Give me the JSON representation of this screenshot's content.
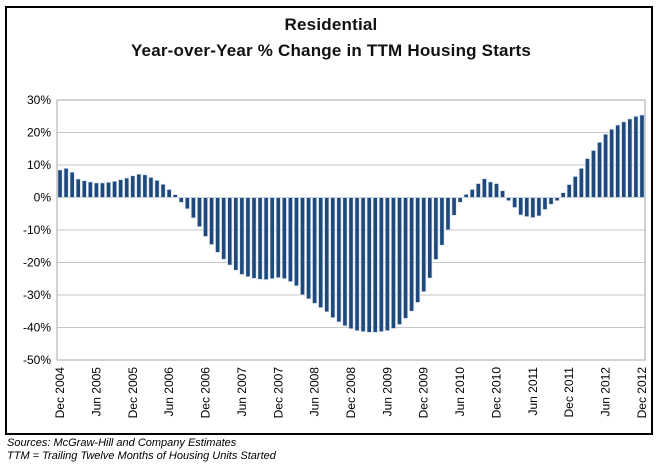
{
  "title": {
    "line1": "Residential",
    "line2": "Year-over-Year % Change in TTM Housing Starts"
  },
  "footer": {
    "line1": "Sources: McGraw-Hill and Company Estimates",
    "line2": "TTM = Trailing Twelve Months of Housing Units Started"
  },
  "chart_data": {
    "type": "bar",
    "title": "Residential Year-over-Year % Change in TTM Housing Starts",
    "xlabel": "",
    "ylabel": "",
    "x_interval": "monthly",
    "x_start": "Dec 2004",
    "x_end": "Dec 2012",
    "tick_every": 6,
    "tick_labels": [
      "Dec 2004",
      "Jun 2005",
      "Dec 2005",
      "Jun 2006",
      "Dec 2006",
      "Jun 2007",
      "Dec 2007",
      "Jun 2008",
      "Dec 2008",
      "Jun 2009",
      "Dec 2009",
      "Jun 2010",
      "Dec 2010",
      "Jun 2011",
      "Dec 2011",
      "Jun 2012",
      "Dec 2012"
    ],
    "values": [
      8.5,
      9.0,
      7.8,
      5.7,
      5.2,
      4.8,
      4.5,
      4.5,
      4.7,
      5.0,
      5.5,
      6.0,
      6.7,
      7.2,
      7.0,
      6.2,
      5.3,
      4.1,
      2.5,
      0.9,
      -1.5,
      -3.5,
      -6.3,
      -9.0,
      -12.0,
      -14.5,
      -16.9,
      -19.0,
      -20.8,
      -22.4,
      -23.7,
      -24.4,
      -24.9,
      -25.2,
      -25.3,
      -25.0,
      -24.7,
      -25.0,
      -25.9,
      -27.2,
      -30.0,
      -31.2,
      -32.6,
      -33.9,
      -35.2,
      -37.0,
      -38.3,
      -39.5,
      -40.4,
      -41.0,
      -41.3,
      -41.5,
      -41.5,
      -41.3,
      -41.0,
      -40.3,
      -39.1,
      -37.2,
      -35.0,
      -32.3,
      -29.0,
      -24.8,
      -19.1,
      -14.7,
      -10.0,
      -5.5,
      -1.5,
      1.0,
      2.5,
      4.3,
      5.8,
      4.8,
      4.3,
      2.1,
      -1.0,
      -3.1,
      -5.4,
      -5.9,
      -6.2,
      -5.7,
      -3.7,
      -2.1,
      -1.0,
      1.5,
      4.0,
      6.5,
      9.0,
      12.0,
      14.5,
      17.0,
      19.5,
      21.0,
      22.3,
      23.3,
      24.2,
      25.0,
      25.4
    ],
    "ylim": [
      -50,
      30
    ],
    "y_ticks": [
      30,
      20,
      10,
      0,
      -10,
      -20,
      -30,
      -40,
      -50
    ],
    "y_tick_labels": [
      "30%",
      "20%",
      "10%",
      "0%",
      "-10%",
      "-20%",
      "-30%",
      "-40%",
      "-50%"
    ],
    "grid": true,
    "legend": false,
    "bar_color": "#1F497D",
    "bar_edge_color": "#DCE6F1",
    "gridline_color": "#C6C6C6",
    "plot_border_color": "#A6A6A6",
    "axis_text_color": "#000000"
  }
}
